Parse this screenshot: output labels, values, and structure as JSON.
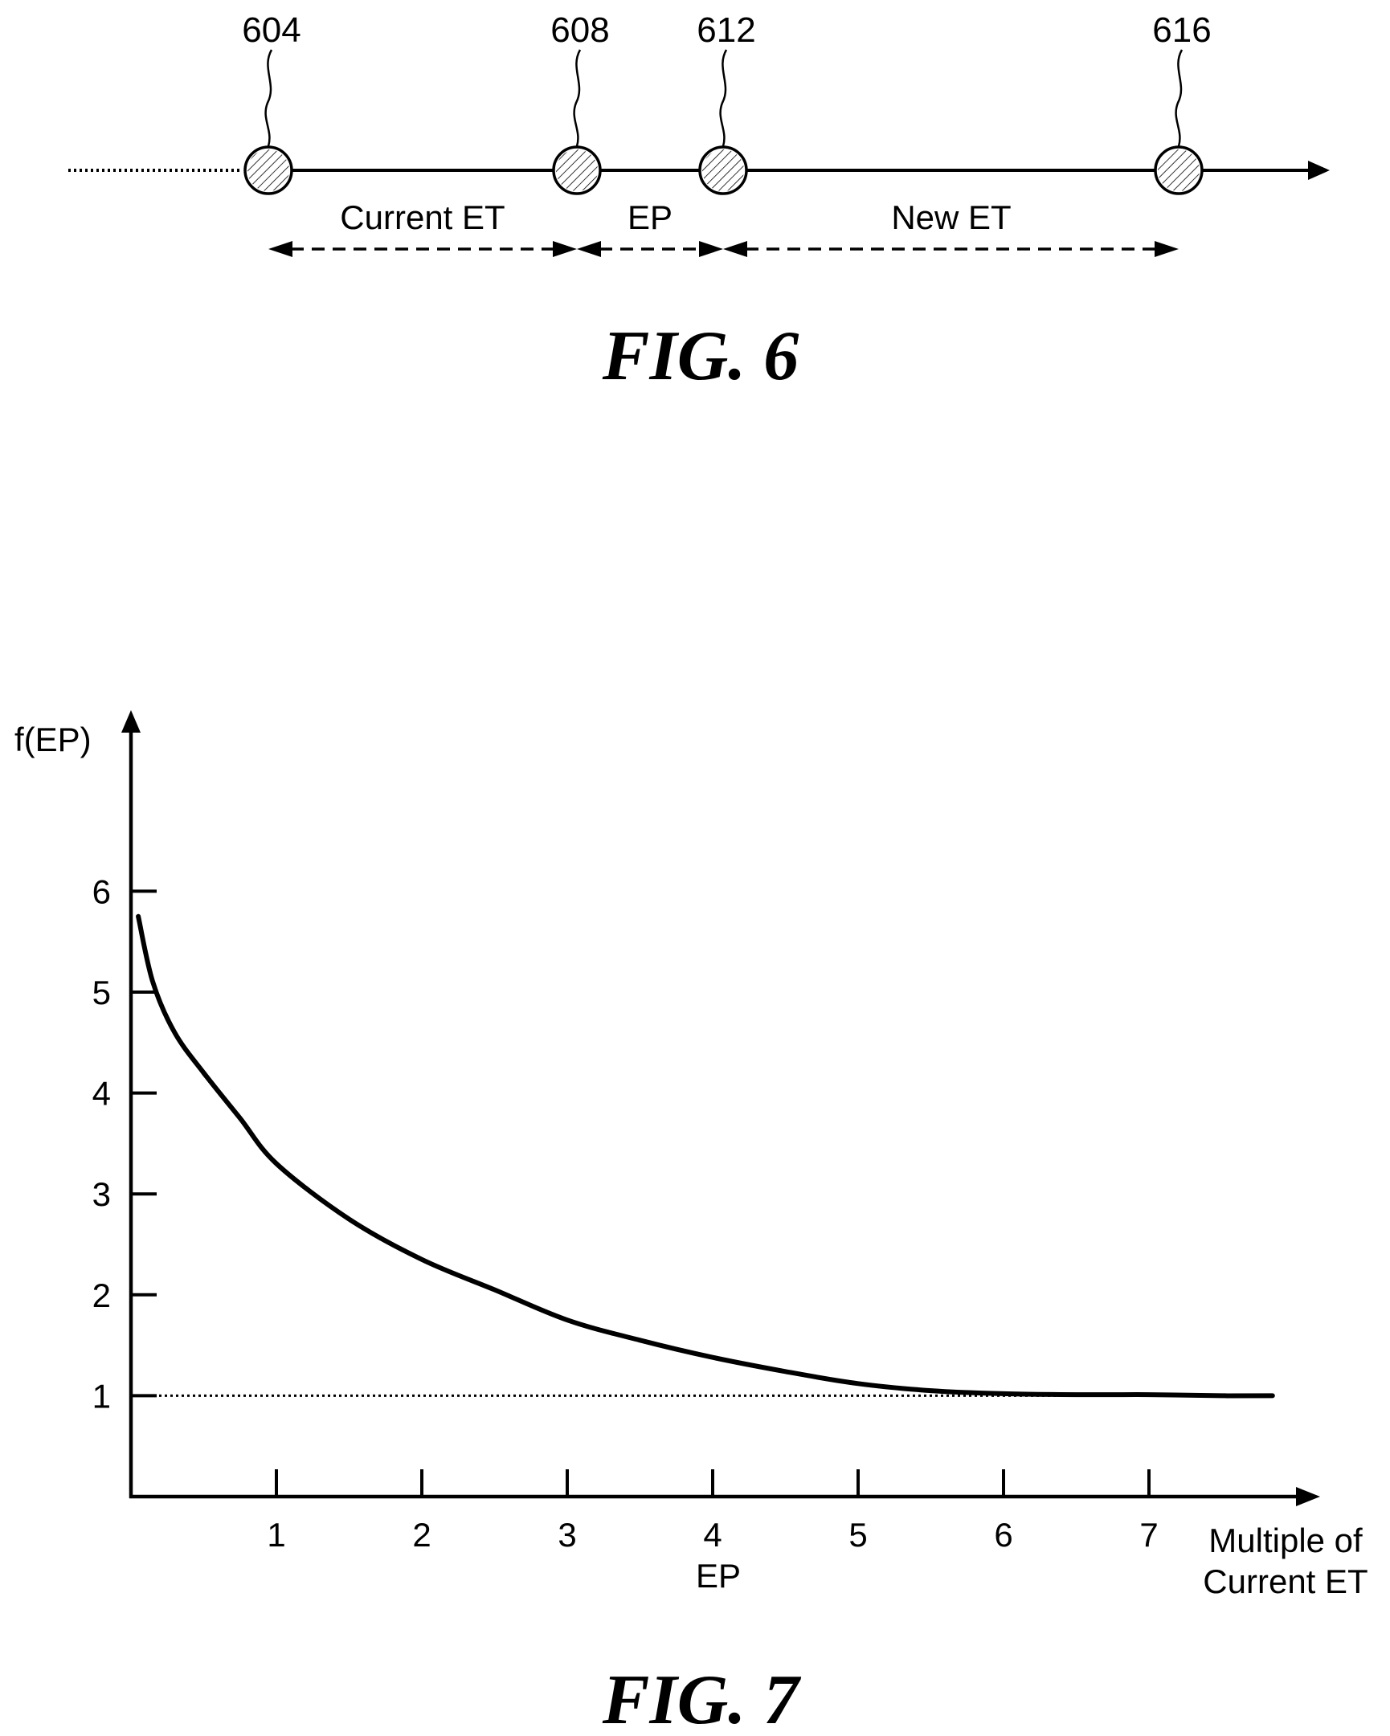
{
  "fig6": {
    "caption": "FIG. 6",
    "nodes": [
      {
        "ref": "604"
      },
      {
        "ref": "608"
      },
      {
        "ref": "612"
      },
      {
        "ref": "616"
      }
    ],
    "spans": [
      {
        "label": "Current ET"
      },
      {
        "label": "EP"
      },
      {
        "label": "New ET"
      }
    ]
  },
  "fig7": {
    "caption": "FIG. 7",
    "chart_data": {
      "type": "line",
      "title": "",
      "ylabel": "f(EP)",
      "xlabel": "EP",
      "xlabel_secondary_line1": "Multiple of",
      "xlabel_secondary_line2": "Current ET",
      "x_ticks": [
        "1",
        "2",
        "3",
        "4",
        "5",
        "6",
        "7"
      ],
      "y_ticks": [
        "1",
        "2",
        "3",
        "4",
        "5",
        "6"
      ],
      "xlim": [
        0,
        8.25
      ],
      "ylim": [
        0,
        7.3
      ],
      "grid": false,
      "legend": "none",
      "series": [
        {
          "x": [
            0.05,
            0.15,
            0.3,
            0.5,
            0.75,
            1.0,
            1.5,
            2.0,
            2.5,
            3.0,
            3.5,
            4.0,
            4.5,
            5.0,
            5.5,
            6.0,
            6.5,
            7.0,
            7.5,
            7.85
          ],
          "y": [
            5.75,
            5.1,
            4.6,
            4.2,
            3.75,
            3.3,
            2.75,
            2.35,
            2.05,
            1.75,
            1.55,
            1.38,
            1.24,
            1.12,
            1.05,
            1.02,
            1.01,
            1.01,
            1.0,
            1.0
          ]
        }
      ],
      "reference_line": {
        "y": 1,
        "x_start": 0,
        "x_end": 7.85,
        "style": "dotted"
      }
    }
  }
}
